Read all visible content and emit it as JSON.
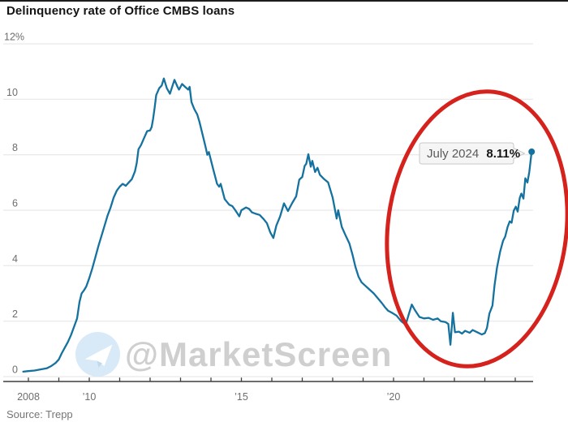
{
  "page": {
    "title": "Delinquency rate of Office CMBS loans",
    "source": "Source: Trepp"
  },
  "tooltip": {
    "label": "July 2024",
    "value": "8.11%"
  },
  "watermark": {
    "text": "@MarketScreen",
    "icon": "telegram-icon"
  },
  "colors": {
    "line": "#15729f",
    "annotation_red": "#d6221c",
    "grid": "#e3e3e3",
    "axis": "#3f3f3f",
    "tick_label": "#6e6e6e",
    "title_text": "#141414",
    "source_text": "#757575",
    "tooltip_bg": "#f5f5f5",
    "tooltip_border": "#c9c9c9",
    "tooltip_label": "#5a5a5a",
    "tooltip_value": "#161616",
    "watermark_text": "#cdcdcd",
    "telegram_circle": "#d6e9f7",
    "telegram_plane": "#ffffff",
    "telegram_plane_shade": "#bcd9ee"
  },
  "chart_data": {
    "type": "line",
    "title": "Delinquency rate of Office CMBS loans",
    "xlabel": "",
    "ylabel": "",
    "unit": "%",
    "grid": "horizontal",
    "legend": "none",
    "ylim": [
      0,
      12
    ],
    "xlim_years": [
      2007.83,
      2024.62
    ],
    "y_ticks": [
      {
        "value": 12,
        "label": "12%"
      },
      {
        "value": 10,
        "label": "10"
      },
      {
        "value": 8,
        "label": "8"
      },
      {
        "value": 6,
        "label": "6"
      },
      {
        "value": 4,
        "label": "4"
      },
      {
        "value": 2,
        "label": "2"
      },
      {
        "value": 0,
        "label": "0"
      }
    ],
    "x_tick_years": [
      2008,
      2009,
      2010,
      2011,
      2012,
      2013,
      2014,
      2015,
      2016,
      2017,
      2018,
      2019,
      2020,
      2021,
      2022,
      2023,
      2024
    ],
    "x_tick_labels": [
      {
        "year": 2008,
        "label": "2008"
      },
      {
        "year": 2010,
        "label": "’10"
      },
      {
        "year": 2015,
        "label": "’15"
      },
      {
        "year": 2020,
        "label": "’20"
      }
    ],
    "series": [
      {
        "name": "Office CMBS delinquency rate (%)",
        "points": [
          [
            2007.83,
            0.18
          ],
          [
            2008.0,
            0.2
          ],
          [
            2008.2,
            0.22
          ],
          [
            2008.4,
            0.26
          ],
          [
            2008.6,
            0.3
          ],
          [
            2008.75,
            0.38
          ],
          [
            2008.9,
            0.5
          ],
          [
            2009.0,
            0.62
          ],
          [
            2009.1,
            0.85
          ],
          [
            2009.2,
            1.05
          ],
          [
            2009.3,
            1.25
          ],
          [
            2009.4,
            1.5
          ],
          [
            2009.5,
            1.8
          ],
          [
            2009.6,
            2.1
          ],
          [
            2009.68,
            2.7
          ],
          [
            2009.75,
            3.0
          ],
          [
            2009.82,
            3.1
          ],
          [
            2009.9,
            3.25
          ],
          [
            2010.0,
            3.55
          ],
          [
            2010.1,
            3.9
          ],
          [
            2010.2,
            4.3
          ],
          [
            2010.3,
            4.7
          ],
          [
            2010.45,
            5.25
          ],
          [
            2010.6,
            5.8
          ],
          [
            2010.7,
            6.1
          ],
          [
            2010.8,
            6.45
          ],
          [
            2010.9,
            6.7
          ],
          [
            2011.0,
            6.85
          ],
          [
            2011.1,
            6.95
          ],
          [
            2011.2,
            6.88
          ],
          [
            2011.3,
            7.0
          ],
          [
            2011.4,
            7.12
          ],
          [
            2011.5,
            7.4
          ],
          [
            2011.56,
            7.7
          ],
          [
            2011.62,
            8.2
          ],
          [
            2011.7,
            8.35
          ],
          [
            2011.8,
            8.6
          ],
          [
            2011.9,
            8.85
          ],
          [
            2012.0,
            8.88
          ],
          [
            2012.05,
            9.0
          ],
          [
            2012.1,
            9.3
          ],
          [
            2012.15,
            9.7
          ],
          [
            2012.2,
            10.15
          ],
          [
            2012.3,
            10.4
          ],
          [
            2012.38,
            10.5
          ],
          [
            2012.45,
            10.75
          ],
          [
            2012.55,
            10.4
          ],
          [
            2012.65,
            10.2
          ],
          [
            2012.8,
            10.7
          ],
          [
            2012.9,
            10.45
          ],
          [
            2012.95,
            10.35
          ],
          [
            2013.05,
            10.55
          ],
          [
            2013.15,
            10.45
          ],
          [
            2013.25,
            10.35
          ],
          [
            2013.3,
            10.45
          ],
          [
            2013.36,
            9.9
          ],
          [
            2013.45,
            9.65
          ],
          [
            2013.55,
            9.45
          ],
          [
            2013.62,
            9.2
          ],
          [
            2013.73,
            8.7
          ],
          [
            2013.82,
            8.3
          ],
          [
            2013.88,
            8.0
          ],
          [
            2013.93,
            8.1
          ],
          [
            2014.07,
            7.5
          ],
          [
            2014.2,
            6.95
          ],
          [
            2014.27,
            6.85
          ],
          [
            2014.32,
            6.95
          ],
          [
            2014.45,
            6.4
          ],
          [
            2014.6,
            6.2
          ],
          [
            2014.7,
            6.15
          ],
          [
            2014.8,
            6.0
          ],
          [
            2014.93,
            5.78
          ],
          [
            2015.0,
            6.0
          ],
          [
            2015.15,
            6.1
          ],
          [
            2015.25,
            6.05
          ],
          [
            2015.35,
            5.92
          ],
          [
            2015.45,
            5.88
          ],
          [
            2015.6,
            5.83
          ],
          [
            2015.73,
            5.68
          ],
          [
            2015.84,
            5.53
          ],
          [
            2015.95,
            5.2
          ],
          [
            2016.05,
            5.0
          ],
          [
            2016.15,
            5.45
          ],
          [
            2016.27,
            5.77
          ],
          [
            2016.4,
            6.25
          ],
          [
            2016.53,
            5.97
          ],
          [
            2016.67,
            6.26
          ],
          [
            2016.8,
            6.5
          ],
          [
            2016.9,
            7.1
          ],
          [
            2017.0,
            7.2
          ],
          [
            2017.08,
            7.6
          ],
          [
            2017.13,
            7.67
          ],
          [
            2017.2,
            8.02
          ],
          [
            2017.28,
            7.57
          ],
          [
            2017.33,
            7.78
          ],
          [
            2017.42,
            7.38
          ],
          [
            2017.5,
            7.53
          ],
          [
            2017.58,
            7.28
          ],
          [
            2017.7,
            7.14
          ],
          [
            2017.85,
            7.0
          ],
          [
            2018.0,
            6.45
          ],
          [
            2018.13,
            5.7
          ],
          [
            2018.18,
            6.0
          ],
          [
            2018.3,
            5.4
          ],
          [
            2018.42,
            5.1
          ],
          [
            2018.55,
            4.8
          ],
          [
            2018.65,
            4.4
          ],
          [
            2018.75,
            3.95
          ],
          [
            2018.85,
            3.6
          ],
          [
            2018.95,
            3.4
          ],
          [
            2019.05,
            3.3
          ],
          [
            2019.2,
            3.15
          ],
          [
            2019.35,
            3.0
          ],
          [
            2019.5,
            2.8
          ],
          [
            2019.62,
            2.65
          ],
          [
            2019.72,
            2.5
          ],
          [
            2019.82,
            2.38
          ],
          [
            2019.95,
            2.3
          ],
          [
            2020.1,
            2.2
          ],
          [
            2020.25,
            2.0
          ],
          [
            2020.4,
            1.87
          ],
          [
            2020.5,
            2.25
          ],
          [
            2020.6,
            2.6
          ],
          [
            2020.7,
            2.4
          ],
          [
            2020.85,
            2.15
          ],
          [
            2021.0,
            2.1
          ],
          [
            2021.15,
            2.12
          ],
          [
            2021.3,
            2.05
          ],
          [
            2021.45,
            2.1
          ],
          [
            2021.55,
            2.0
          ],
          [
            2021.7,
            1.97
          ],
          [
            2021.8,
            1.9
          ],
          [
            2021.87,
            1.15
          ],
          [
            2021.95,
            2.3
          ],
          [
            2022.02,
            1.6
          ],
          [
            2022.15,
            1.62
          ],
          [
            2022.25,
            1.55
          ],
          [
            2022.35,
            1.65
          ],
          [
            2022.5,
            1.58
          ],
          [
            2022.6,
            1.68
          ],
          [
            2022.75,
            1.6
          ],
          [
            2022.9,
            1.52
          ],
          [
            2023.0,
            1.57
          ],
          [
            2023.07,
            1.75
          ],
          [
            2023.15,
            2.27
          ],
          [
            2023.25,
            2.56
          ],
          [
            2023.32,
            3.3
          ],
          [
            2023.4,
            3.93
          ],
          [
            2023.5,
            4.5
          ],
          [
            2023.6,
            4.9
          ],
          [
            2023.67,
            5.05
          ],
          [
            2023.75,
            5.4
          ],
          [
            2023.82,
            5.6
          ],
          [
            2023.88,
            5.55
          ],
          [
            2023.95,
            5.98
          ],
          [
            2024.02,
            6.13
          ],
          [
            2024.08,
            5.95
          ],
          [
            2024.15,
            6.45
          ],
          [
            2024.2,
            6.6
          ],
          [
            2024.27,
            6.42
          ],
          [
            2024.33,
            7.15
          ],
          [
            2024.4,
            7.0
          ],
          [
            2024.46,
            7.38
          ],
          [
            2024.54,
            8.11
          ]
        ]
      }
    ],
    "end_point": {
      "year": 2024.54,
      "value": 8.11,
      "label": "July 2024",
      "value_label": "8.11%"
    },
    "annotation": {
      "shape": "ellipse",
      "highlights": "2021–2024 surge in office delinquency"
    }
  }
}
